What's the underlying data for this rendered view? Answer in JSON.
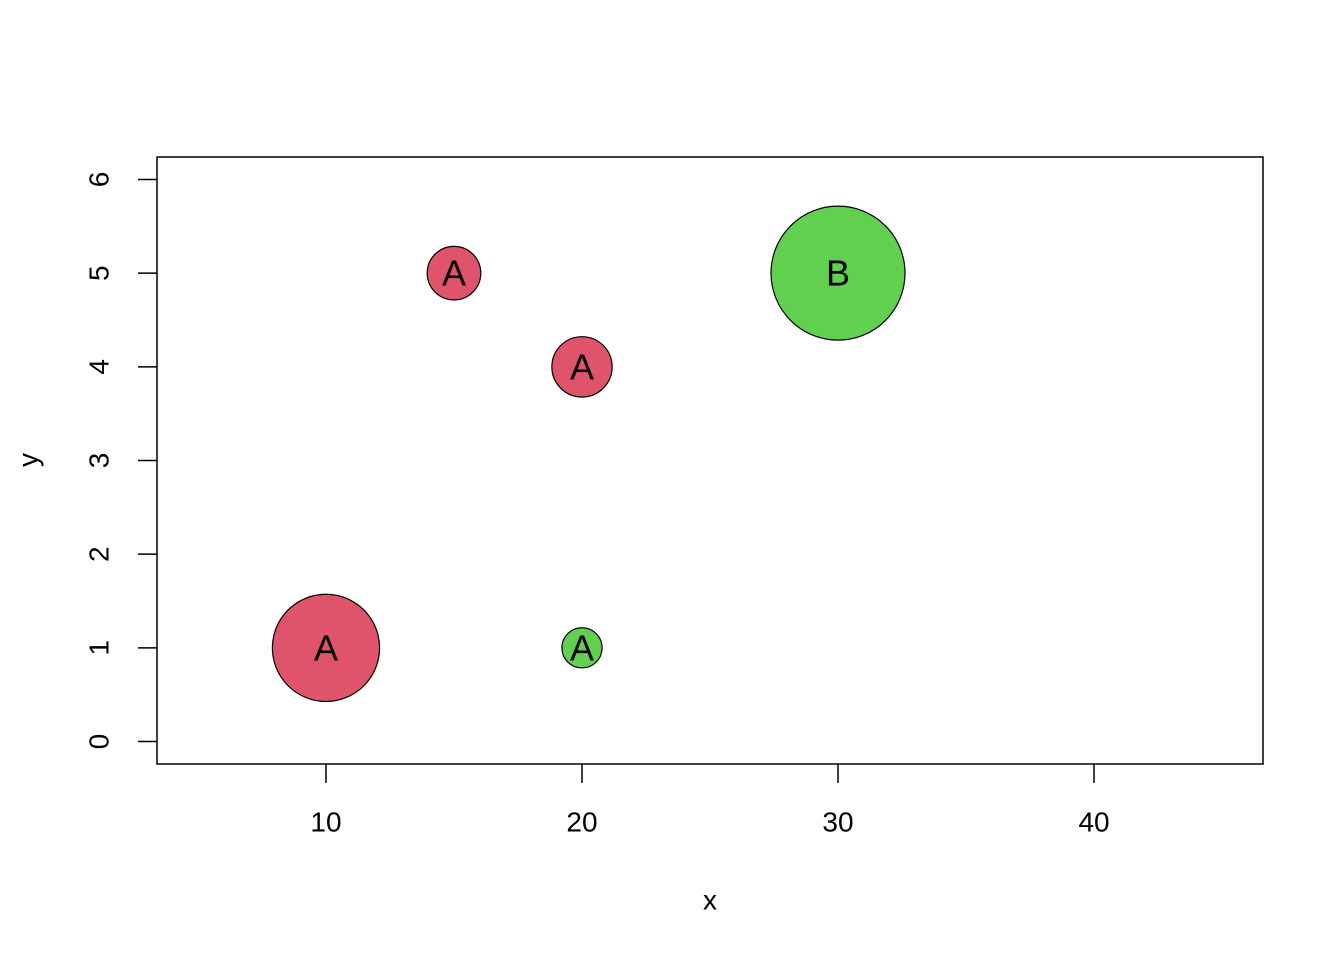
{
  "chart_data": {
    "type": "bubble",
    "x_label": "x",
    "y_label": "y",
    "x": [
      10,
      15,
      20,
      30,
      20
    ],
    "y": [
      1,
      5,
      4,
      5,
      1
    ],
    "sizes": [
      8,
      4,
      4.5,
      10,
      3
    ],
    "labels": [
      "A",
      "A",
      "A",
      "B",
      "A"
    ],
    "colors": [
      "#DF536B",
      "#DF536B",
      "#DF536B",
      "#61D04F",
      "#61D04F"
    ],
    "xlim": [
      3.4,
      46.6
    ],
    "ylim": [
      -0.24,
      6.24
    ],
    "xticks": [
      10,
      20,
      30,
      40
    ],
    "yticks": [
      0,
      1,
      2,
      3,
      4,
      5,
      6
    ]
  }
}
